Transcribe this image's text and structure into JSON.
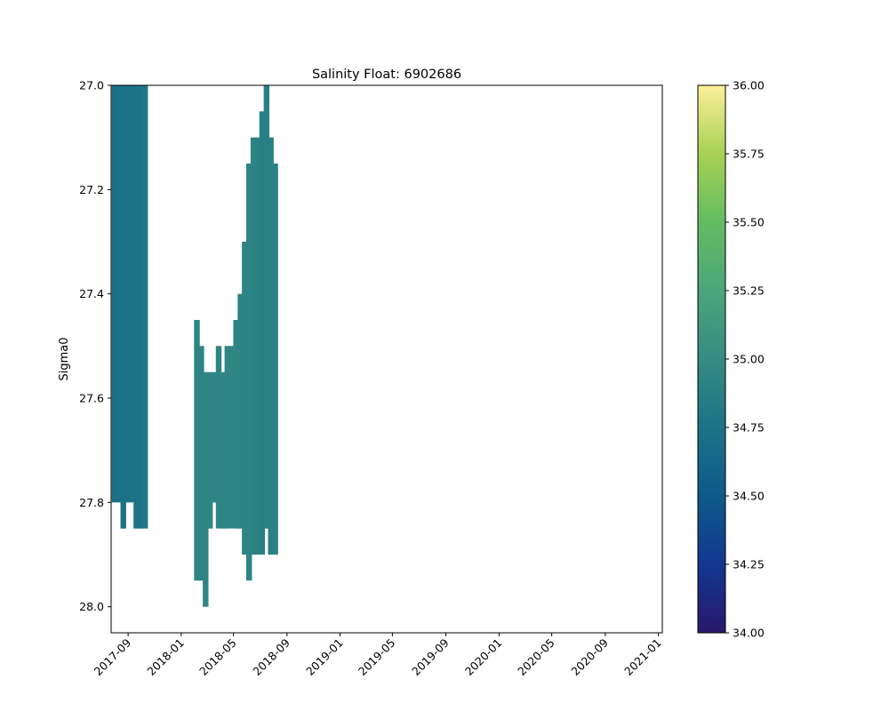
{
  "chart_data": {
    "type": "heatmap",
    "title": "Salinity Float: 6902686",
    "xlabel": "",
    "ylabel": "Sigma0",
    "x_type": "date",
    "x_ticks": [
      "2017-09",
      "2018-01",
      "2018-05",
      "2018-09",
      "2019-01",
      "2019-05",
      "2019-09",
      "2020-01",
      "2020-05",
      "2020-09",
      "2021-01"
    ],
    "y_ticks": [
      "27.0",
      "27.2",
      "27.4",
      "27.6",
      "27.8",
      "28.0"
    ],
    "ylim": [
      28.05,
      27.0
    ],
    "y_inverted": true,
    "grid": false,
    "colorbar": {
      "ticks": [
        "34.00",
        "34.25",
        "34.50",
        "34.75",
        "35.00",
        "35.25",
        "35.50",
        "35.75",
        "36.00"
      ],
      "range": [
        34.0,
        36.0
      ],
      "colormap": "haline",
      "colors": [
        "#2a186c",
        "#13378f",
        "#0e5a8a",
        "#1c7387",
        "#358c82",
        "#4ca57a",
        "#63bc62",
        "#a6d154",
        "#fdef9a"
      ]
    },
    "profiles": [
      {
        "date": "2017-08-01",
        "sigma_min": 27.0,
        "sigma_max": 27.8,
        "salinity": 34.72
      },
      {
        "date": "2017-08-11",
        "sigma_min": 27.0,
        "sigma_max": 27.8,
        "salinity": 34.73
      },
      {
        "date": "2017-08-21",
        "sigma_min": 27.0,
        "sigma_max": 27.85,
        "salinity": 34.74
      },
      {
        "date": "2017-08-31",
        "sigma_min": 27.0,
        "sigma_max": 27.8,
        "salinity": 34.74
      },
      {
        "date": "2017-09-10",
        "sigma_min": 27.0,
        "sigma_max": 27.8,
        "salinity": 34.75
      },
      {
        "date": "2017-09-20",
        "sigma_min": 27.0,
        "sigma_max": 27.85,
        "salinity": 34.75
      },
      {
        "date": "2017-09-30",
        "sigma_min": 27.0,
        "sigma_max": 27.85,
        "salinity": 34.76
      },
      {
        "date": "2017-10-10",
        "sigma_min": 27.0,
        "sigma_max": 27.85,
        "salinity": 34.8
      },
      {
        "date": "2018-02-06",
        "sigma_min": 27.45,
        "sigma_max": 27.95,
        "salinity": 34.92
      },
      {
        "date": "2018-02-16",
        "sigma_min": 27.5,
        "sigma_max": 27.95,
        "salinity": 34.92
      },
      {
        "date": "2018-02-26",
        "sigma_min": 27.55,
        "sigma_max": 28.0,
        "salinity": 34.93
      },
      {
        "date": "2018-03-08",
        "sigma_min": 27.55,
        "sigma_max": 27.85,
        "salinity": 34.93
      },
      {
        "date": "2018-03-18",
        "sigma_min": 27.55,
        "sigma_max": 27.8,
        "salinity": 34.93
      },
      {
        "date": "2018-03-28",
        "sigma_min": 27.5,
        "sigma_max": 27.85,
        "salinity": 34.93
      },
      {
        "date": "2018-04-07",
        "sigma_min": 27.55,
        "sigma_max": 27.85,
        "salinity": 34.93
      },
      {
        "date": "2018-04-17",
        "sigma_min": 27.5,
        "sigma_max": 27.85,
        "salinity": 34.93
      },
      {
        "date": "2018-04-27",
        "sigma_min": 27.5,
        "sigma_max": 27.85,
        "salinity": 34.93
      },
      {
        "date": "2018-05-07",
        "sigma_min": 27.45,
        "sigma_max": 27.85,
        "salinity": 34.93
      },
      {
        "date": "2018-05-17",
        "sigma_min": 27.4,
        "sigma_max": 27.85,
        "salinity": 34.92
      },
      {
        "date": "2018-05-27",
        "sigma_min": 27.3,
        "sigma_max": 27.9,
        "salinity": 34.92
      },
      {
        "date": "2018-06-06",
        "sigma_min": 27.15,
        "sigma_max": 27.95,
        "salinity": 34.92
      },
      {
        "date": "2018-06-16",
        "sigma_min": 27.1,
        "sigma_max": 27.9,
        "salinity": 34.91
      },
      {
        "date": "2018-06-26",
        "sigma_min": 27.1,
        "sigma_max": 27.9,
        "salinity": 34.9
      },
      {
        "date": "2018-07-06",
        "sigma_min": 27.05,
        "sigma_max": 27.9,
        "salinity": 34.88
      },
      {
        "date": "2018-07-16",
        "sigma_min": 27.0,
        "sigma_max": 27.85,
        "salinity": 34.87
      },
      {
        "date": "2018-07-26",
        "sigma_min": 27.1,
        "sigma_max": 27.9,
        "salinity": 34.89
      },
      {
        "date": "2018-08-05",
        "sigma_min": 27.15,
        "sigma_max": 27.9,
        "salinity": 34.9
      }
    ]
  }
}
